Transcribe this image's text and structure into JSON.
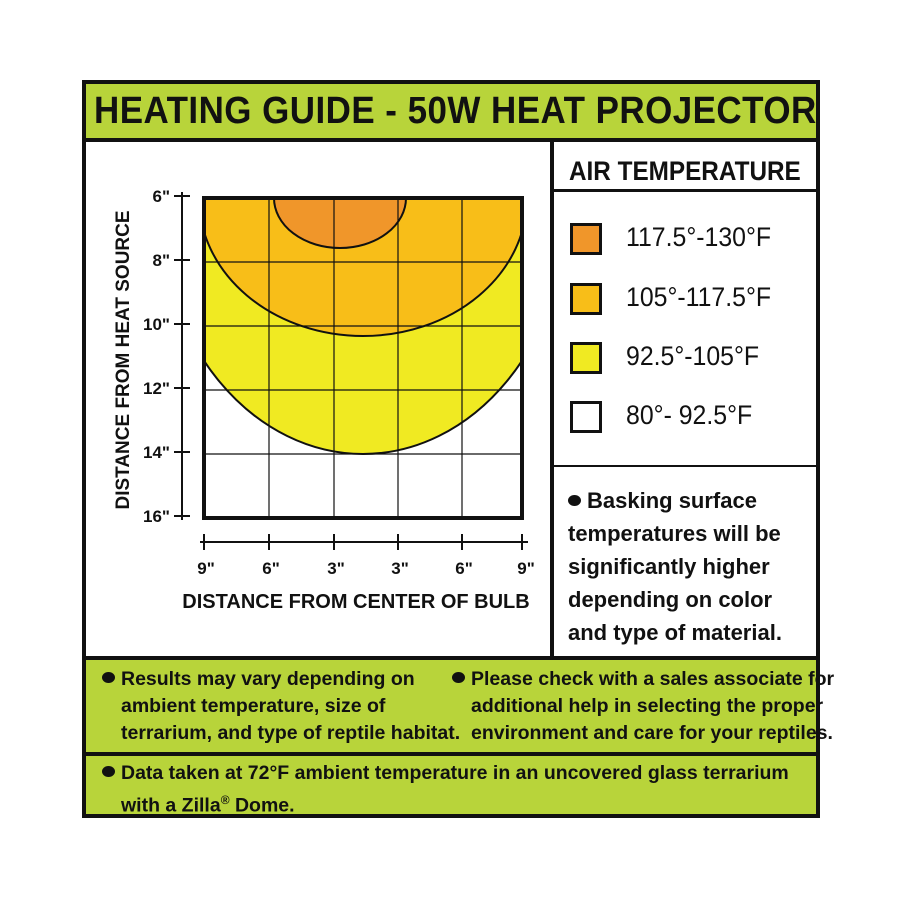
{
  "title": "HEATING GUIDE - 50W HEAT PROJECTOR",
  "legend": {
    "title": "AIR TEMPERATURE",
    "items": [
      {
        "label": "117.5°-130°F",
        "color": "#f0962a"
      },
      {
        "label": "105°-117.5°F",
        "color": "#f8be18"
      },
      {
        "label": "92.5°-105°F",
        "color": "#f0ea22"
      },
      {
        "label": "80°- 92.5°F",
        "color": "#ffffff"
      }
    ]
  },
  "basking_note": "Basking surface temperatures will be significantly higher depending on color and type of material.",
  "diagram": {
    "y_axis_label": "DISTANCE FROM HEAT SOURCE",
    "x_axis_label": "DISTANCE FROM CENTER OF BULB",
    "y_ticks": [
      "6\"",
      "8\"",
      "10\"",
      "12\"",
      "14\"",
      "16\""
    ],
    "x_ticks": [
      "9\"",
      "6\"",
      "3\"",
      "3\"",
      "6\"",
      "9\""
    ]
  },
  "notes": {
    "results": [
      "Results may vary depending on",
      "ambient temperature, size of",
      "terrarium, and type of reptile habitat."
    ],
    "check": [
      "Please check with a sales associate for",
      "additional help in selecting the proper",
      "environment and care for your reptiles."
    ],
    "data_line1": "Data taken at 72°F ambient temperature in an uncovered glass terrarium",
    "data_line2_prefix": "with a Zilla",
    "data_line2_mark": "®",
    "data_line2_suffix": " Dome."
  }
}
